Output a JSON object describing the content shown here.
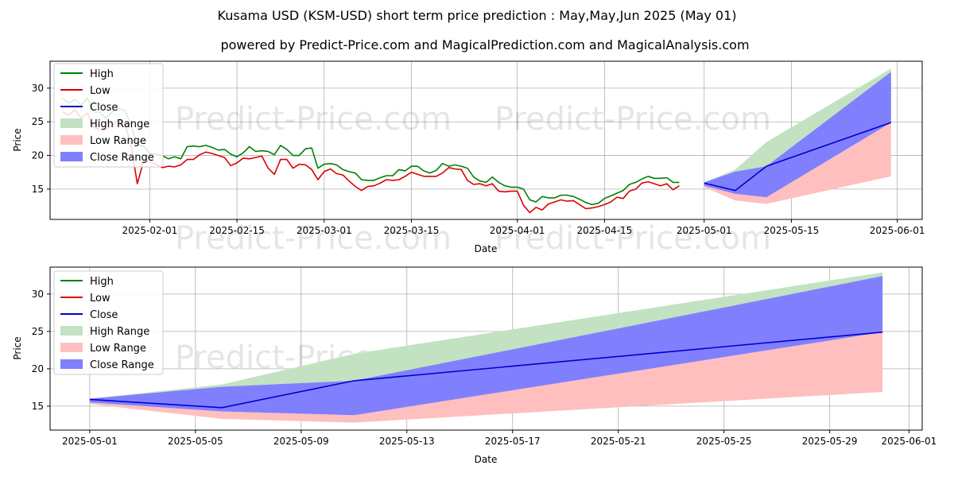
{
  "header": {
    "title": "Kusama USD (KSM-USD) short term price prediction : May,May,Jun 2025 (May 01)",
    "subtitle": "powered by Predict-Price.com and MagicalPrediction.com and MagicalAnalysis.com"
  },
  "watermark": "Predict-Price.com",
  "colors": {
    "high": "#008000",
    "low": "#dd0000",
    "close": "#0000cc",
    "high_range": "#c2e2c2",
    "low_range": "#ffbfbf",
    "close_range": "#8080ff",
    "grid": "#b0b0b0"
  },
  "chart_data": [
    {
      "type": "line",
      "xlabel": "Date",
      "ylabel": "Price",
      "x_tick_labels": [
        "2025-02-01",
        "2025-02-15",
        "2025-03-01",
        "2025-03-15",
        "2025-04-01",
        "2025-04-15",
        "2025-05-01",
        "2025-05-15",
        "2025-06-01"
      ],
      "y_tick_labels": [
        "15",
        "20",
        "25",
        "30"
      ],
      "ylim": [
        10.5,
        34
      ],
      "grid": true,
      "legend": {
        "position": "upper-left",
        "entries": [
          "High",
          "Low",
          "Close",
          "High Range",
          "Low Range",
          "Close Range"
        ]
      },
      "history": {
        "start_date": "2025-01-18",
        "high": [
          28.5,
          27.8,
          28.3,
          27.5,
          28.5,
          26.5,
          26.4,
          25.5,
          26.5,
          27.0,
          26.7,
          24.5,
          21.6,
          21.4,
          20.3,
          20.2,
          20.0,
          19.5,
          19.8,
          19.5,
          21.3,
          21.4,
          21.3,
          21.5,
          21.2,
          20.8,
          20.9,
          20.2,
          19.8,
          20.4,
          21.3,
          20.6,
          20.7,
          20.6,
          20.1,
          21.5,
          20.9,
          20.0,
          20.0,
          21.0,
          21.1,
          18.1,
          18.7,
          18.8,
          18.6,
          17.9,
          17.6,
          17.4,
          16.4,
          16.3,
          16.3,
          16.7,
          17.0,
          17.0,
          17.9,
          17.7,
          18.4,
          18.4,
          17.7,
          17.4,
          17.8,
          18.8,
          18.4,
          18.6,
          18.4,
          18.1,
          16.8,
          16.2,
          16.0,
          16.8,
          16.0,
          15.5,
          15.3,
          15.3,
          15.0,
          13.4,
          13.1,
          13.9,
          13.7,
          13.7,
          14.1,
          14.1,
          13.9,
          13.5,
          13.0,
          12.7,
          12.9,
          13.6,
          14.0,
          14.4,
          14.8,
          15.7,
          16.0,
          16.5,
          16.9,
          16.6,
          16.6,
          16.7,
          16.0,
          16.0
        ],
        "low": [
          26.5,
          26.0,
          26.8,
          25.5,
          26.3,
          24.2,
          23.8,
          23.8,
          24.5,
          25.2,
          24.8,
          21.5,
          15.8,
          19.1,
          19.2,
          18.7,
          18.2,
          18.4,
          18.3,
          18.6,
          19.4,
          19.4,
          20.1,
          20.5,
          20.3,
          20.0,
          19.7,
          18.5,
          18.9,
          19.6,
          19.5,
          19.7,
          19.9,
          18.1,
          17.2,
          19.4,
          19.4,
          18.1,
          18.7,
          18.6,
          17.9,
          16.4,
          17.6,
          18.0,
          17.3,
          17.1,
          16.2,
          15.4,
          14.8,
          15.4,
          15.5,
          15.9,
          16.4,
          16.3,
          16.4,
          16.9,
          17.5,
          17.2,
          16.9,
          16.9,
          16.9,
          17.4,
          18.2,
          18.0,
          17.9,
          16.3,
          15.7,
          15.8,
          15.5,
          15.8,
          14.7,
          14.6,
          14.7,
          14.7,
          12.6,
          11.5,
          12.3,
          11.9,
          12.8,
          13.1,
          13.4,
          13.2,
          13.3,
          12.7,
          12.1,
          12.2,
          12.4,
          12.7,
          13.1,
          13.8,
          13.6,
          14.7,
          15.0,
          15.9,
          16.1,
          15.8,
          15.5,
          15.8,
          14.9,
          15.5
        ]
      },
      "forecast_dates": [
        "2025-05-01",
        "2025-05-06",
        "2025-05-11",
        "2025-05-31"
      ],
      "forecast": {
        "close": [
          15.9,
          14.8,
          18.4,
          24.9
        ],
        "high_range": {
          "upper": [
            16.0,
            17.9,
            22.0,
            32.9
          ],
          "lower": [
            15.6,
            16.6,
            18.0,
            24.9
          ]
        },
        "low_range": {
          "upper": [
            15.9,
            14.8,
            18.4,
            24.9
          ],
          "lower": [
            15.3,
            13.3,
            12.8,
            16.9
          ]
        },
        "close_range": {
          "upper": [
            16.0,
            17.6,
            18.4,
            32.4
          ],
          "lower": [
            15.5,
            14.3,
            13.8,
            24.9
          ]
        }
      }
    },
    {
      "type": "area",
      "xlabel": "Date",
      "ylabel": "Price",
      "x_tick_labels": [
        "2025-05-01",
        "2025-05-05",
        "2025-05-09",
        "2025-05-13",
        "2025-05-17",
        "2025-05-21",
        "2025-05-25",
        "2025-05-29",
        "2025-06-01"
      ],
      "y_tick_labels": [
        "15",
        "20",
        "25",
        "30"
      ],
      "ylim": [
        11.8,
        33.6
      ],
      "grid": true,
      "legend": {
        "position": "upper-left",
        "entries": [
          "High",
          "Low",
          "Close",
          "High Range",
          "Low Range",
          "Close Range"
        ]
      },
      "forecast_dates": [
        "2025-05-01",
        "2025-05-06",
        "2025-05-11",
        "2025-05-31"
      ],
      "forecast": {
        "close": [
          15.9,
          14.8,
          18.4,
          24.9
        ],
        "high_range": {
          "upper": [
            16.0,
            17.9,
            22.0,
            32.9
          ],
          "lower": [
            15.6,
            16.6,
            18.0,
            24.9
          ]
        },
        "low_range": {
          "upper": [
            15.9,
            14.8,
            18.4,
            24.9
          ],
          "lower": [
            15.3,
            13.3,
            12.8,
            16.9
          ]
        },
        "close_range": {
          "upper": [
            16.0,
            17.6,
            18.4,
            32.4
          ],
          "lower": [
            15.5,
            14.3,
            13.8,
            24.9
          ]
        }
      }
    }
  ]
}
